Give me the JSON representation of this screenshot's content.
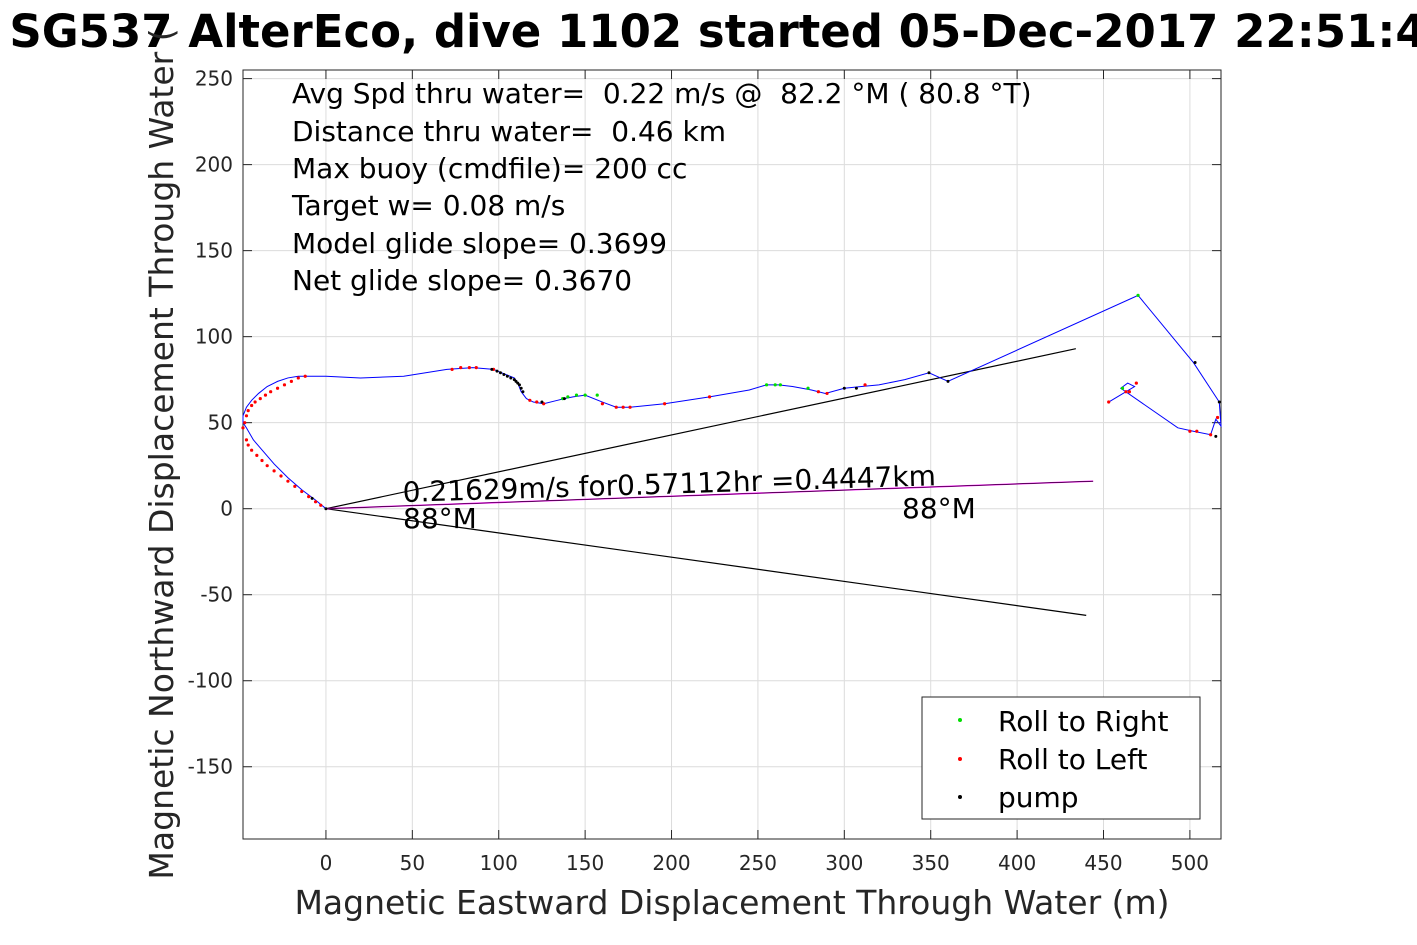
{
  "chart_data": {
    "type": "scatter",
    "title": "SG537 AlterEco, dive 1102 started 05-Dec-2017 22:51:4",
    "xlabel": "Magnetic Eastward Displacement Through Water (m)",
    "ylabel": "Magnetic Northward Displacement Through Water (",
    "xlim": [
      -48,
      518
    ],
    "ylim": [
      -192,
      255
    ],
    "xticks": [
      0,
      50,
      100,
      150,
      200,
      250,
      300,
      350,
      400,
      450,
      500
    ],
    "yticks": [
      -150,
      -100,
      -50,
      0,
      50,
      100,
      150,
      200,
      250
    ],
    "grid": true,
    "legend_position": "bottom-right",
    "colors": {
      "track": "#0000ff",
      "roll_right": "#00dd00",
      "roll_left": "#ff0000",
      "pump": "#000000",
      "current": "#000000",
      "net": "#ff00ff"
    },
    "annotations": [
      "Avg Spd thru water=  0.22 m/s @  82.2 °M ( 80.8 °T)",
      "Distance thru water=  0.46 km",
      "Max buoy (cmdfile)= 200 cc",
      "Target w= 0.08 m/s",
      "Model glide slope= 0.3699",
      "Net glide slope= 0.3670"
    ],
    "vector_label": "0.21629m/s for0.57112hr =0.4447km",
    "heading_label_left": "88°M",
    "heading_label_right": "88°M",
    "legend": [
      {
        "label": "Roll to Right",
        "color": "#00dd00"
      },
      {
        "label": "Roll to Left",
        "color": "#ff0000"
      },
      {
        "label": "pump",
        "color": "#000000"
      }
    ],
    "series": [
      {
        "name": "track",
        "x": [
          0,
          -6,
          -14,
          -22,
          -30,
          -36,
          -42,
          -46,
          -48,
          -48,
          -46,
          -43,
          -39,
          -34,
          -28,
          -22,
          -16,
          -10,
          -4,
          0,
          20,
          45,
          70,
          85,
          97,
          104,
          109,
          111,
          113,
          116,
          120,
          126,
          134,
          138,
          143,
          150,
          160,
          168,
          176,
          196,
          222,
          245,
          255,
          262,
          270,
          281,
          289,
          300,
          310,
          320,
          335,
          349,
          360,
          470,
          502,
          517,
          518,
          515,
          512,
          502,
          493,
          460,
          464,
          466,
          468,
          453
        ],
        "y": [
          0,
          5,
          11,
          18,
          26,
          33,
          40,
          47,
          50,
          54,
          59,
          63,
          67,
          71,
          74,
          76,
          77,
          77,
          77,
          77,
          76,
          77,
          81,
          82,
          81,
          78,
          76,
          73,
          68,
          64,
          62,
          61,
          63,
          64,
          65,
          66,
          62,
          59,
          59,
          61,
          65,
          69,
          72,
          72,
          71,
          69,
          67,
          70,
          71,
          72,
          75,
          79,
          74,
          124,
          85,
          62,
          48,
          52,
          43,
          45,
          47,
          70,
          73,
          72,
          71,
          62
        ]
      },
      {
        "name": "Roll to Right",
        "x": [
          137,
          140,
          145,
          150,
          157,
          255,
          260,
          263,
          279,
          470,
          461
        ],
        "y": [
          64,
          65,
          66,
          66,
          66,
          72,
          72,
          72,
          70,
          124,
          70
        ]
      },
      {
        "name": "Roll to Left",
        "x": [
          -48,
          -47,
          -46,
          -45,
          -43,
          -41,
          -38,
          -35,
          -32,
          -28,
          -24,
          -20,
          -16,
          -12,
          -46,
          -45,
          -43,
          -40,
          -37,
          -34,
          -30,
          -26,
          -22,
          -18,
          -14,
          -10,
          -6,
          -3,
          73,
          78,
          83,
          87,
          97,
          118,
          122,
          126,
          160,
          168,
          172,
          176,
          196,
          222,
          285,
          290,
          312,
          453,
          463,
          465,
          469,
          500,
          504,
          512,
          516
        ],
        "y": [
          47,
          50,
          54,
          57,
          60,
          62,
          64,
          66,
          68,
          70,
          72,
          74,
          76,
          77,
          40,
          37,
          34,
          31,
          28,
          25,
          22,
          19,
          16,
          13,
          10,
          7,
          4,
          2,
          81,
          82,
          82,
          82,
          81,
          63,
          62,
          61,
          61,
          59,
          59,
          59,
          61,
          65,
          68,
          67,
          72,
          62,
          68,
          68,
          73,
          45,
          45,
          43,
          53
        ]
      },
      {
        "name": "pump",
        "x": [
          0,
          -8,
          96,
          99,
          101,
          103,
          105,
          107,
          109,
          110,
          111,
          112,
          113,
          114,
          125,
          138,
          300,
          307,
          349,
          360,
          503,
          517,
          515
        ],
        "y": [
          0,
          6,
          81,
          80,
          79,
          78,
          77,
          76,
          75,
          74,
          73,
          72,
          70,
          68,
          62,
          64,
          70,
          70,
          79,
          74,
          85,
          62,
          42
        ]
      },
      {
        "name": "current-upper",
        "x": [
          0,
          434
        ],
        "y": [
          0,
          93
        ]
      },
      {
        "name": "current-lower",
        "x": [
          0,
          440
        ],
        "y": [
          0,
          -62
        ]
      },
      {
        "name": "net-displacement",
        "x": [
          0,
          444
        ],
        "y": [
          0,
          16
        ]
      }
    ]
  }
}
